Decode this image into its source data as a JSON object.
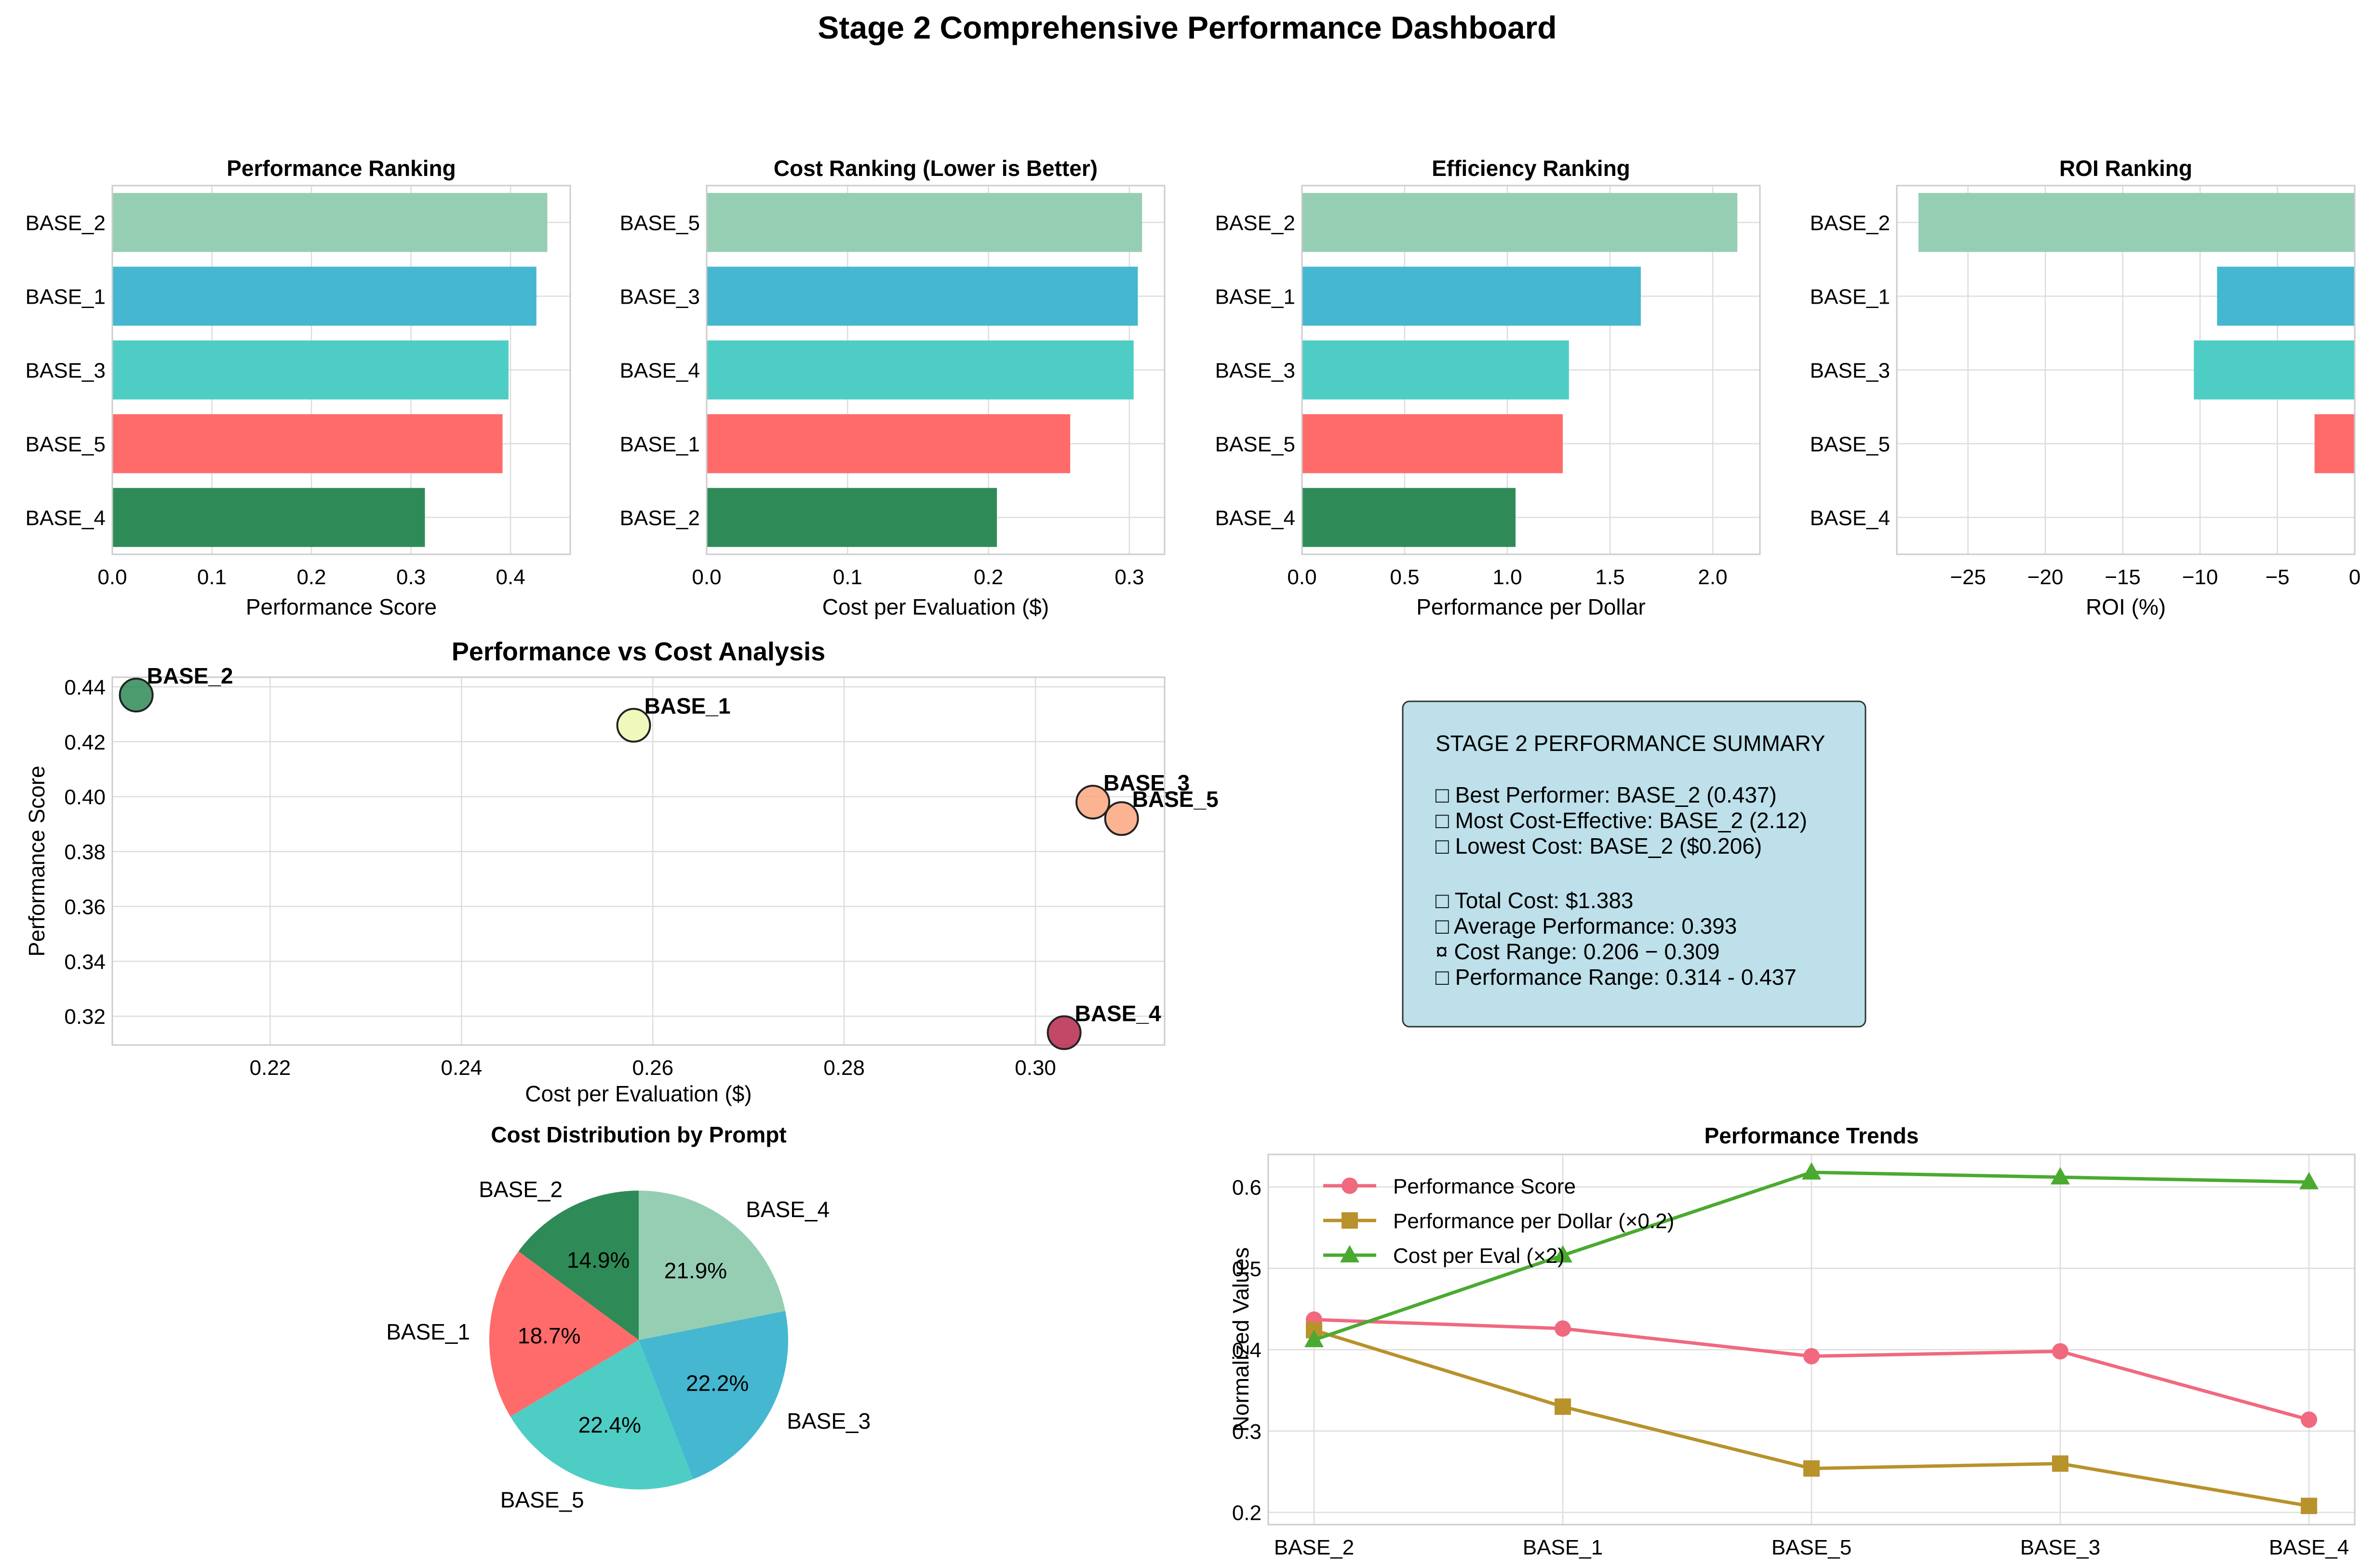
{
  "suptitle": "Stage 2 Comprehensive Performance Dashboard",
  "colors": {
    "palette": [
      "#2e8b57",
      "#ff6b6b",
      "#4ecdc4",
      "#45b7d1",
      "#96ceb4"
    ],
    "summary_box": "#add8e6",
    "trend_performance": "#f0697f",
    "trend_per_dollar": "#b8922b",
    "trend_cost": "#4aaa30"
  },
  "summary": {
    "heading": "STAGE 2 PERFORMANCE SUMMARY",
    "lines": [
      "□ Best Performer: BASE_2 (0.437)",
      "□ Most Cost-Effective: BASE_2 (2.12)",
      "□ Lowest Cost: BASE_2 ($0.206)",
      "",
      "□ Total Cost: $1.383",
      "□ Average Performance: 0.393",
      "¤ Cost Range: 0.206 − 0.309",
      "□ Performance Range: 0.314 - 0.437"
    ]
  },
  "chart_data": [
    {
      "id": "perf",
      "type": "bar",
      "orientation": "horizontal",
      "title": "Performance Ranking",
      "xlabel": "Performance Score",
      "ylabel": "",
      "categories": [
        "BASE_2",
        "BASE_1",
        "BASE_3",
        "BASE_5",
        "BASE_4"
      ],
      "values": [
        0.437,
        0.426,
        0.398,
        0.392,
        0.314
      ],
      "xlim": [
        0,
        0.46
      ],
      "xticks": [
        0.0,
        0.1,
        0.2,
        0.3,
        0.4
      ],
      "xtick_labels": [
        "0.0",
        "0.1",
        "0.2",
        "0.3",
        "0.4"
      ],
      "grid": true
    },
    {
      "id": "cost",
      "type": "bar",
      "orientation": "horizontal",
      "title": "Cost Ranking (Lower is Better)",
      "xlabel": "Cost per Evaluation ($)",
      "ylabel": "",
      "categories": [
        "BASE_5",
        "BASE_3",
        "BASE_4",
        "BASE_1",
        "BASE_2"
      ],
      "values": [
        0.309,
        0.306,
        0.303,
        0.258,
        0.206
      ],
      "xlim": [
        0,
        0.325
      ],
      "xticks": [
        0.0,
        0.1,
        0.2,
        0.3
      ],
      "xtick_labels": [
        "0.0",
        "0.1",
        "0.2",
        "0.3"
      ],
      "grid": true
    },
    {
      "id": "eff",
      "type": "bar",
      "orientation": "horizontal",
      "title": "Efficiency Ranking",
      "xlabel": "Performance per Dollar",
      "ylabel": "",
      "categories": [
        "BASE_2",
        "BASE_1",
        "BASE_3",
        "BASE_5",
        "BASE_4"
      ],
      "values": [
        2.12,
        1.65,
        1.3,
        1.27,
        1.04
      ],
      "xlim": [
        0,
        2.23
      ],
      "xticks": [
        0.0,
        0.5,
        1.0,
        1.5,
        2.0
      ],
      "xtick_labels": [
        "0.0",
        "0.5",
        "1.0",
        "1.5",
        "2.0"
      ],
      "grid": true
    },
    {
      "id": "roi",
      "type": "bar",
      "orientation": "horizontal",
      "title": "ROI Ranking",
      "xlabel": "ROI (%)",
      "ylabel": "",
      "categories": [
        "BASE_2",
        "BASE_1",
        "BASE_3",
        "BASE_5",
        "BASE_4"
      ],
      "values": [
        -28.2,
        -8.9,
        -10.4,
        -2.6,
        0
      ],
      "xlim": [
        -29.6,
        0
      ],
      "xticks": [
        -25,
        -20,
        -15,
        -10,
        -5,
        0
      ],
      "xtick_labels": [
        "−25",
        "−20",
        "−15",
        "−10",
        "−5",
        "0"
      ],
      "grid": true
    },
    {
      "id": "scatter",
      "type": "scatter",
      "title": "Performance vs Cost Analysis",
      "xlabel": "Cost per Evaluation ($)",
      "ylabel": "Performance Score",
      "points": [
        {
          "label": "BASE_2",
          "x": 0.206,
          "y": 0.437,
          "color": "#2e8b57"
        },
        {
          "label": "BASE_1",
          "x": 0.258,
          "y": 0.426,
          "color": "#eef7b0"
        },
        {
          "label": "BASE_3",
          "x": 0.306,
          "y": 0.398,
          "color": "#fba67e"
        },
        {
          "label": "BASE_5",
          "x": 0.309,
          "y": 0.392,
          "color": "#fba67e"
        },
        {
          "label": "BASE_4",
          "x": 0.303,
          "y": 0.314,
          "color": "#b8284e"
        }
      ],
      "xlim": [
        0.2035,
        0.3135
      ],
      "ylim": [
        0.3095,
        0.4435
      ],
      "xticks": [
        0.22,
        0.24,
        0.26,
        0.28,
        0.3
      ],
      "xtick_labels": [
        "0.22",
        "0.24",
        "0.26",
        "0.28",
        "0.30"
      ],
      "yticks": [
        0.32,
        0.34,
        0.36,
        0.38,
        0.4,
        0.42,
        0.44
      ],
      "ytick_labels": [
        "0.32",
        "0.34",
        "0.36",
        "0.38",
        "0.40",
        "0.42",
        "0.44"
      ],
      "grid": true
    },
    {
      "id": "pie",
      "type": "pie",
      "title": "Cost Distribution by Prompt",
      "labels": [
        "BASE_2",
        "BASE_1",
        "BASE_5",
        "BASE_3",
        "BASE_4"
      ],
      "values": [
        14.9,
        18.7,
        22.4,
        22.2,
        21.9
      ],
      "pct_labels": [
        "14.9%",
        "18.7%",
        "22.4%",
        "22.2%",
        "21.9%"
      ],
      "colors": [
        "#2e8b57",
        "#ff6b6b",
        "#4ecdc4",
        "#45b7d1",
        "#96ceb4"
      ],
      "start_angle": 90
    },
    {
      "id": "trends",
      "type": "line",
      "title": "Performance Trends",
      "xlabel": "",
      "ylabel": "Normalized Values",
      "categories": [
        "BASE_2",
        "BASE_1",
        "BASE_5",
        "BASE_3",
        "BASE_4"
      ],
      "series": [
        {
          "name": "Performance Score",
          "values": [
            0.437,
            0.426,
            0.392,
            0.398,
            0.314
          ],
          "color": "#f0697f",
          "marker": "circle"
        },
        {
          "name": "Performance per Dollar (×0.2)",
          "values": [
            0.424,
            0.33,
            0.254,
            0.26,
            0.208
          ],
          "color": "#b8922b",
          "marker": "square"
        },
        {
          "name": "Cost per Eval (×2)",
          "values": [
            0.412,
            0.516,
            0.618,
            0.612,
            0.606
          ],
          "color": "#4aaa30",
          "marker": "triangle"
        }
      ],
      "ylim": [
        0.185,
        0.64
      ],
      "yticks": [
        0.2,
        0.3,
        0.4,
        0.5,
        0.6
      ],
      "ytick_labels": [
        "0.2",
        "0.3",
        "0.4",
        "0.5",
        "0.6"
      ],
      "legend": "upper-left",
      "grid": true
    }
  ]
}
